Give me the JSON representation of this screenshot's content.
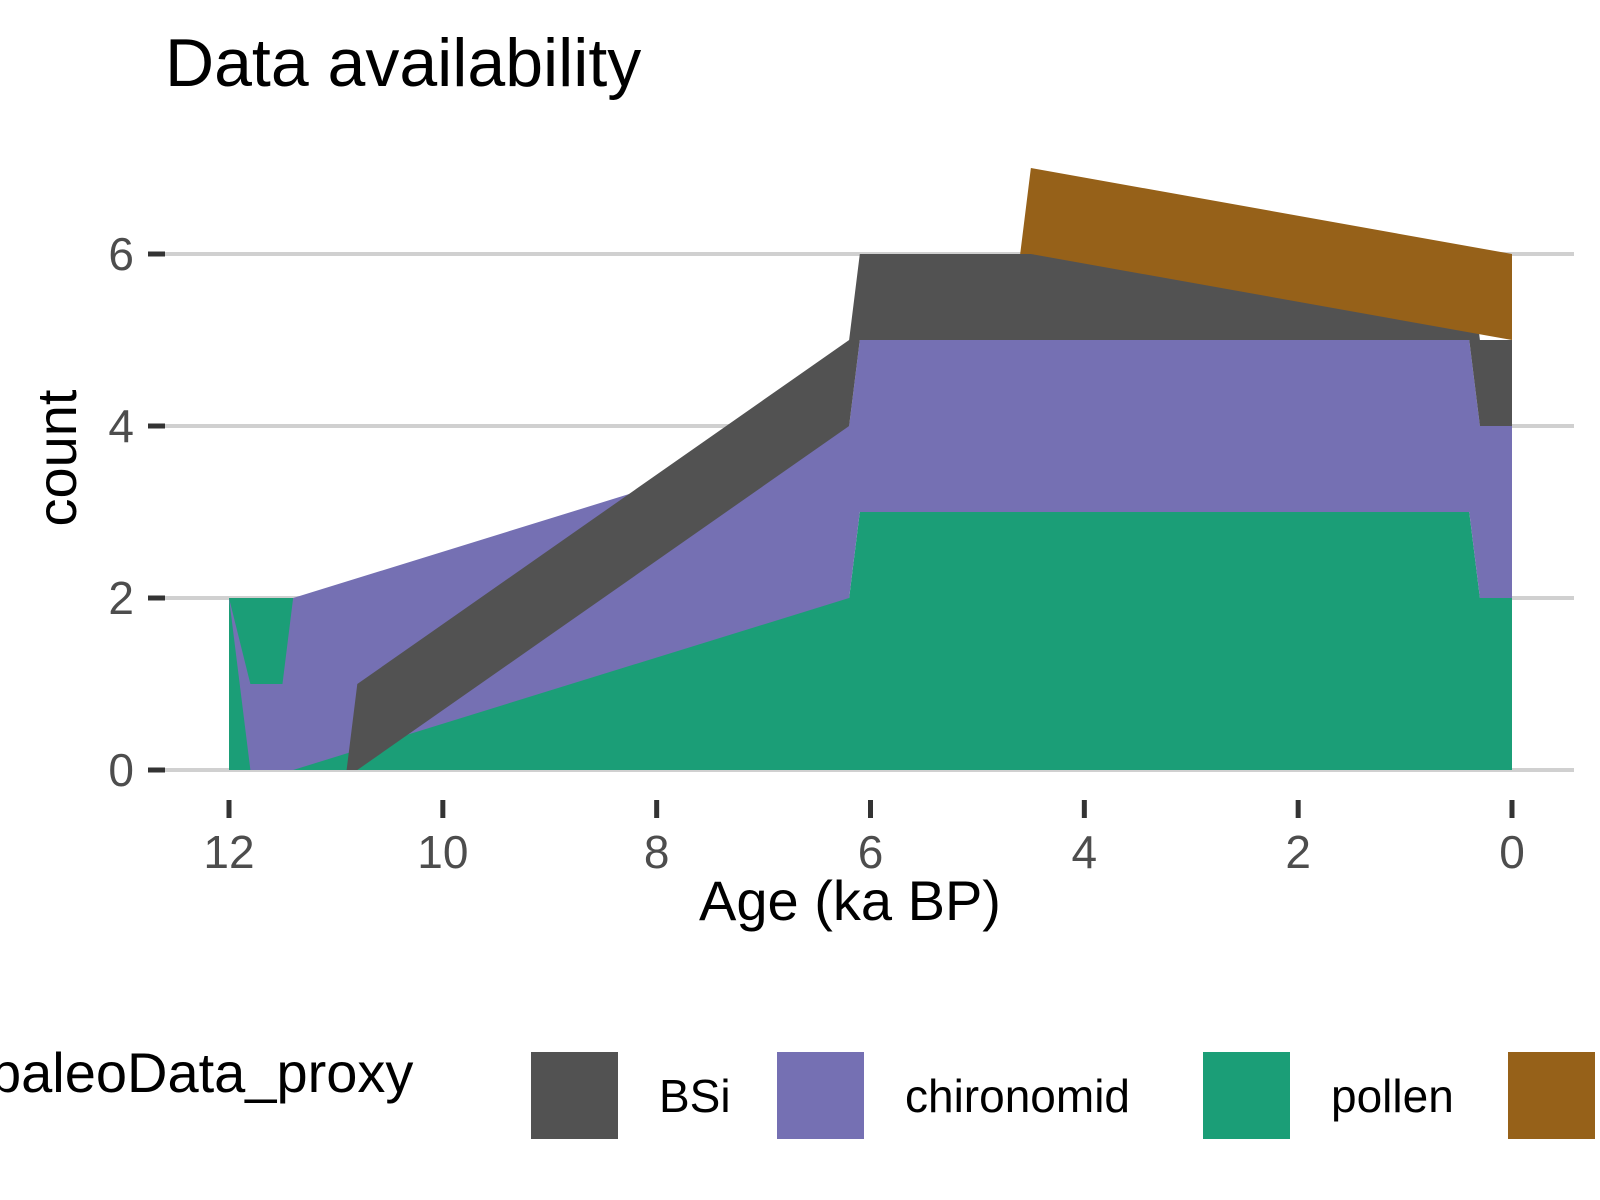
{
  "chart_data": {
    "type": "area",
    "title": "Data availability",
    "xlabel": "Age (ka BP)",
    "ylabel": "count",
    "x_reversed": true,
    "xlim": [
      12.0,
      0.0
    ],
    "ylim": [
      0,
      7
    ],
    "x_ticks": [
      12,
      10,
      8,
      6,
      4,
      2,
      0
    ],
    "y_ticks": [
      0,
      2,
      4,
      6
    ],
    "grid": "horizontal-major",
    "stacking": "stacked",
    "legend": {
      "title": "paleoData_proxy",
      "placement": "bottom"
    },
    "series": [
      {
        "name": "pollen",
        "color": "#1b9e77",
        "points": [
          [
            12.0,
            2
          ],
          [
            6.2,
            2
          ],
          [
            6.1,
            3
          ],
          [
            4.6,
            3
          ],
          [
            4.5,
            3
          ],
          [
            0.4,
            3
          ],
          [
            0.3,
            2
          ],
          [
            0.0,
            2
          ]
        ]
      },
      {
        "name": "chironomid",
        "color": "#7570b3",
        "points": [
          [
            12.0,
            0
          ],
          [
            11.8,
            1
          ],
          [
            11.5,
            1
          ],
          [
            11.4,
            2
          ],
          [
            6.2,
            2
          ],
          [
            6.1,
            2
          ],
          [
            4.6,
            2
          ],
          [
            4.5,
            2
          ],
          [
            0.4,
            2
          ],
          [
            0.3,
            2
          ],
          [
            0.0,
            2
          ]
        ]
      },
      {
        "name": "BSi",
        "color": "#525252",
        "points": [
          [
            12.0,
            0
          ],
          [
            10.9,
            0
          ],
          [
            10.8,
            1
          ],
          [
            6.2,
            1
          ],
          [
            6.1,
            1
          ],
          [
            4.6,
            1
          ],
          [
            4.5,
            1
          ],
          [
            0.4,
            1
          ],
          [
            0.3,
            1
          ],
          [
            0.0,
            1
          ]
        ]
      },
      {
        "name": "",
        "color": "#966119",
        "points": [
          [
            12.0,
            0
          ],
          [
            4.6,
            0
          ],
          [
            4.5,
            1
          ],
          [
            0.0,
            1
          ]
        ]
      }
    ],
    "legend_entries": [
      "BSi",
      "chironomid",
      "pollen",
      ""
    ],
    "legend_colors": [
      "#525252",
      "#7570b3",
      "#1b9e77",
      "#966119"
    ],
    "colors": {
      "grid": "#d0d0d0",
      "tick": "#333333",
      "background": "#ffffff"
    }
  }
}
